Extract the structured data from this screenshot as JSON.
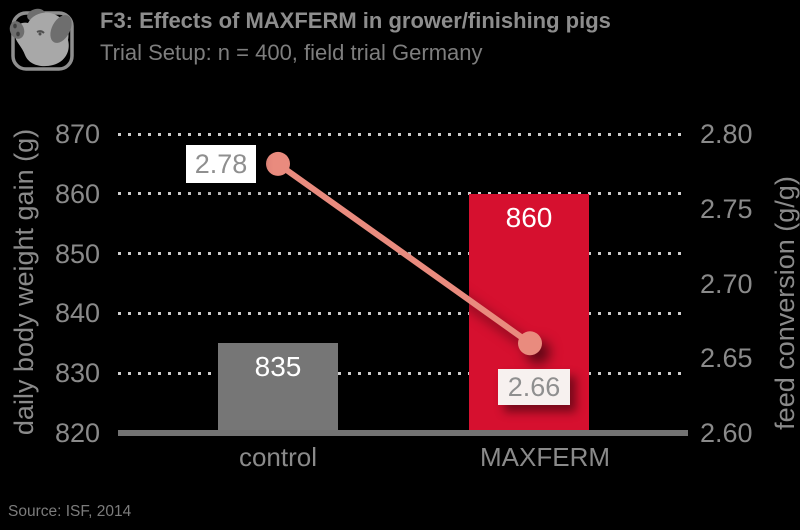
{
  "header": {
    "title": "F3: Effects of MAXFERM in grower/finishing pigs",
    "subtitle": "Trial Setup: n = 400, field trial Germany",
    "icon": "pig-icon"
  },
  "source": "Source: ISF, 2014",
  "chart_data": {
    "type": "combo",
    "categories": [
      "control",
      "MAXFERM"
    ],
    "series": [
      {
        "name": "daily body weight gain (g)",
        "type": "bar",
        "axis": "left",
        "values": [
          835,
          860
        ]
      },
      {
        "name": "feed conversion (g/g)",
        "type": "line",
        "axis": "right",
        "values": [
          2.78,
          2.66
        ]
      }
    ],
    "bar_value_labels": [
      "835",
      "860"
    ],
    "line_value_labels": [
      "2.78",
      "2.66"
    ],
    "left_axis": {
      "title": "daily body weight gain (g)",
      "min": 820,
      "max": 870,
      "ticks": [
        870,
        860,
        850,
        840,
        830,
        820
      ]
    },
    "right_axis": {
      "title": "feed conversion (g/g)",
      "min": 2.6,
      "max": 2.8,
      "ticks": [
        "2.80",
        "2.75",
        "2.70",
        "2.65",
        "2.60"
      ]
    },
    "grid": "horizontal-dotted",
    "legend": "none",
    "colors": {
      "background": "#000000",
      "bar_control": "#767676",
      "bar_maxferm": "#d6102f",
      "line": "#e98b7e",
      "grid_dots": "#cdcdcd",
      "baseline": "#737373",
      "axis_text": "#8a8a8a",
      "bar_label_text": "#ffffff",
      "value_box_bg": "#ffffff",
      "value_box_text": "#8f8f8f"
    }
  }
}
